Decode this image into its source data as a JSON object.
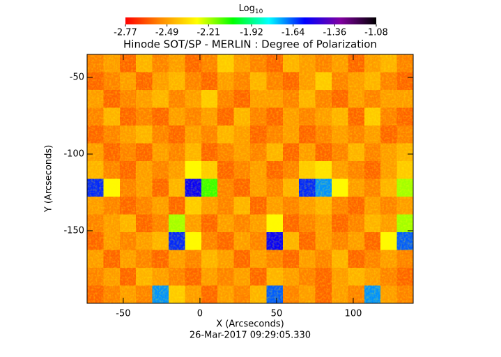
{
  "chart_data": {
    "type": "heatmap",
    "title": "Hinode SOT/SP - MERLIN : Degree of Polarization",
    "xlabel": "X (Arcseconds)",
    "ylabel": "Y (Arcseconds)",
    "footer": "26-Mar-2017 09:29:05.330",
    "colorbar_label": "Log",
    "colorbar_label_sub": "10",
    "clim": [
      -2.77,
      -1.08
    ],
    "cticks": [
      -2.77,
      -2.49,
      -2.21,
      -1.92,
      -1.64,
      -1.36,
      -1.08
    ],
    "colormap": [
      "#ff0000",
      "#ff8c00",
      "#ffff00",
      "#00ff00",
      "#00ffff",
      "#0000ff",
      "#8000a0",
      "#000000"
    ],
    "xlim": [
      -73.6,
      139.1
    ],
    "ylim": [
      -197.3,
      -35
    ],
    "xticks": [
      -50,
      0,
      50,
      100
    ],
    "yticks": [
      -50,
      -100,
      -150
    ],
    "z": [
      [
        -2.55,
        -2.5,
        -2.6,
        -2.45,
        -2.55,
        -2.5,
        -2.6,
        -2.55,
        -2.4,
        -2.5,
        -2.55,
        -2.6,
        -2.45,
        -2.5,
        -2.55,
        -2.5,
        -2.6,
        -2.5,
        -2.45,
        -2.55
      ],
      [
        -2.6,
        -2.55,
        -2.5,
        -2.6,
        -2.5,
        -2.45,
        -2.55,
        -2.6,
        -2.5,
        -2.55,
        -2.45,
        -2.55,
        -2.6,
        -2.5,
        -2.4,
        -2.55,
        -2.5,
        -2.45,
        -2.55,
        -2.6
      ],
      [
        -2.5,
        -2.6,
        -2.55,
        -2.5,
        -2.45,
        -2.55,
        -2.5,
        -2.4,
        -2.55,
        -2.6,
        -2.5,
        -2.5,
        -2.55,
        -2.45,
        -2.55,
        -2.6,
        -2.5,
        -2.55,
        -2.5,
        -2.5
      ],
      [
        -2.55,
        -2.45,
        -2.6,
        -2.55,
        -2.6,
        -2.5,
        -2.55,
        -2.5,
        -2.6,
        -2.45,
        -2.55,
        -2.6,
        -2.5,
        -2.55,
        -2.5,
        -2.45,
        -2.6,
        -2.4,
        -2.55,
        -2.6
      ],
      [
        -2.6,
        -2.55,
        -2.5,
        -2.45,
        -2.55,
        -2.6,
        -2.5,
        -2.55,
        -2.45,
        -2.5,
        -2.6,
        -2.55,
        -2.5,
        -2.6,
        -2.55,
        -2.5,
        -2.55,
        -2.5,
        -2.6,
        -2.55
      ],
      [
        -2.5,
        -2.6,
        -2.55,
        -2.6,
        -2.5,
        -2.55,
        -2.45,
        -2.6,
        -2.55,
        -2.5,
        -2.55,
        -2.45,
        -2.6,
        -2.5,
        -2.6,
        -2.55,
        -2.45,
        -2.55,
        -2.5,
        -2.45
      ],
      [
        -2.45,
        -2.55,
        -2.6,
        -2.5,
        -2.55,
        -2.5,
        -2.3,
        -2.4,
        -2.6,
        -2.55,
        -2.5,
        -2.6,
        -2.55,
        -2.4,
        -2.35,
        -2.5,
        -2.55,
        -2.6,
        -2.5,
        -2.4
      ],
      [
        -1.6,
        -2.3,
        -2.55,
        -2.5,
        -2.6,
        -2.45,
        -1.55,
        -2.1,
        -2.55,
        -2.6,
        -2.5,
        -2.55,
        -2.45,
        -1.6,
        -1.7,
        -2.3,
        -2.5,
        -2.55,
        -2.45,
        -2.2
      ],
      [
        -2.5,
        -2.55,
        -2.6,
        -2.55,
        -2.5,
        -2.6,
        -2.4,
        -2.5,
        -2.55,
        -2.45,
        -2.6,
        -2.5,
        -2.55,
        -2.5,
        -2.45,
        -2.55,
        -2.6,
        -2.5,
        -2.55,
        -2.5
      ],
      [
        -2.55,
        -2.5,
        -2.45,
        -2.6,
        -2.55,
        -2.2,
        -2.5,
        -2.6,
        -2.5,
        -2.55,
        -2.5,
        -2.3,
        -2.6,
        -2.55,
        -2.5,
        -2.6,
        -2.55,
        -2.45,
        -2.5,
        -2.2
      ],
      [
        -2.6,
        -2.5,
        -2.55,
        -2.5,
        -2.45,
        -1.6,
        -2.3,
        -2.55,
        -2.6,
        -2.5,
        -2.55,
        -1.55,
        -2.45,
        -2.6,
        -2.5,
        -2.55,
        -2.5,
        -2.6,
        -2.3,
        -1.65
      ],
      [
        -2.5,
        -2.6,
        -2.5,
        -2.55,
        -2.6,
        -2.5,
        -2.55,
        -2.45,
        -2.5,
        -2.6,
        -2.5,
        -2.55,
        -2.6,
        -2.5,
        -2.55,
        -2.45,
        -2.6,
        -2.55,
        -2.5,
        -2.55
      ],
      [
        -2.55,
        -2.5,
        -2.6,
        -2.45,
        -2.5,
        -2.55,
        -2.6,
        -2.5,
        -2.55,
        -2.5,
        -2.6,
        -2.45,
        -2.5,
        -2.55,
        -2.6,
        -2.5,
        -2.45,
        -2.5,
        -2.55,
        -2.6
      ],
      [
        -2.6,
        -2.55,
        -2.5,
        -2.55,
        -1.7,
        -2.4,
        -2.5,
        -2.6,
        -2.5,
        -2.55,
        -2.45,
        -1.65,
        -2.55,
        -2.5,
        -2.6,
        -2.5,
        -2.55,
        -1.7,
        -2.5,
        -2.55
      ]
    ]
  }
}
